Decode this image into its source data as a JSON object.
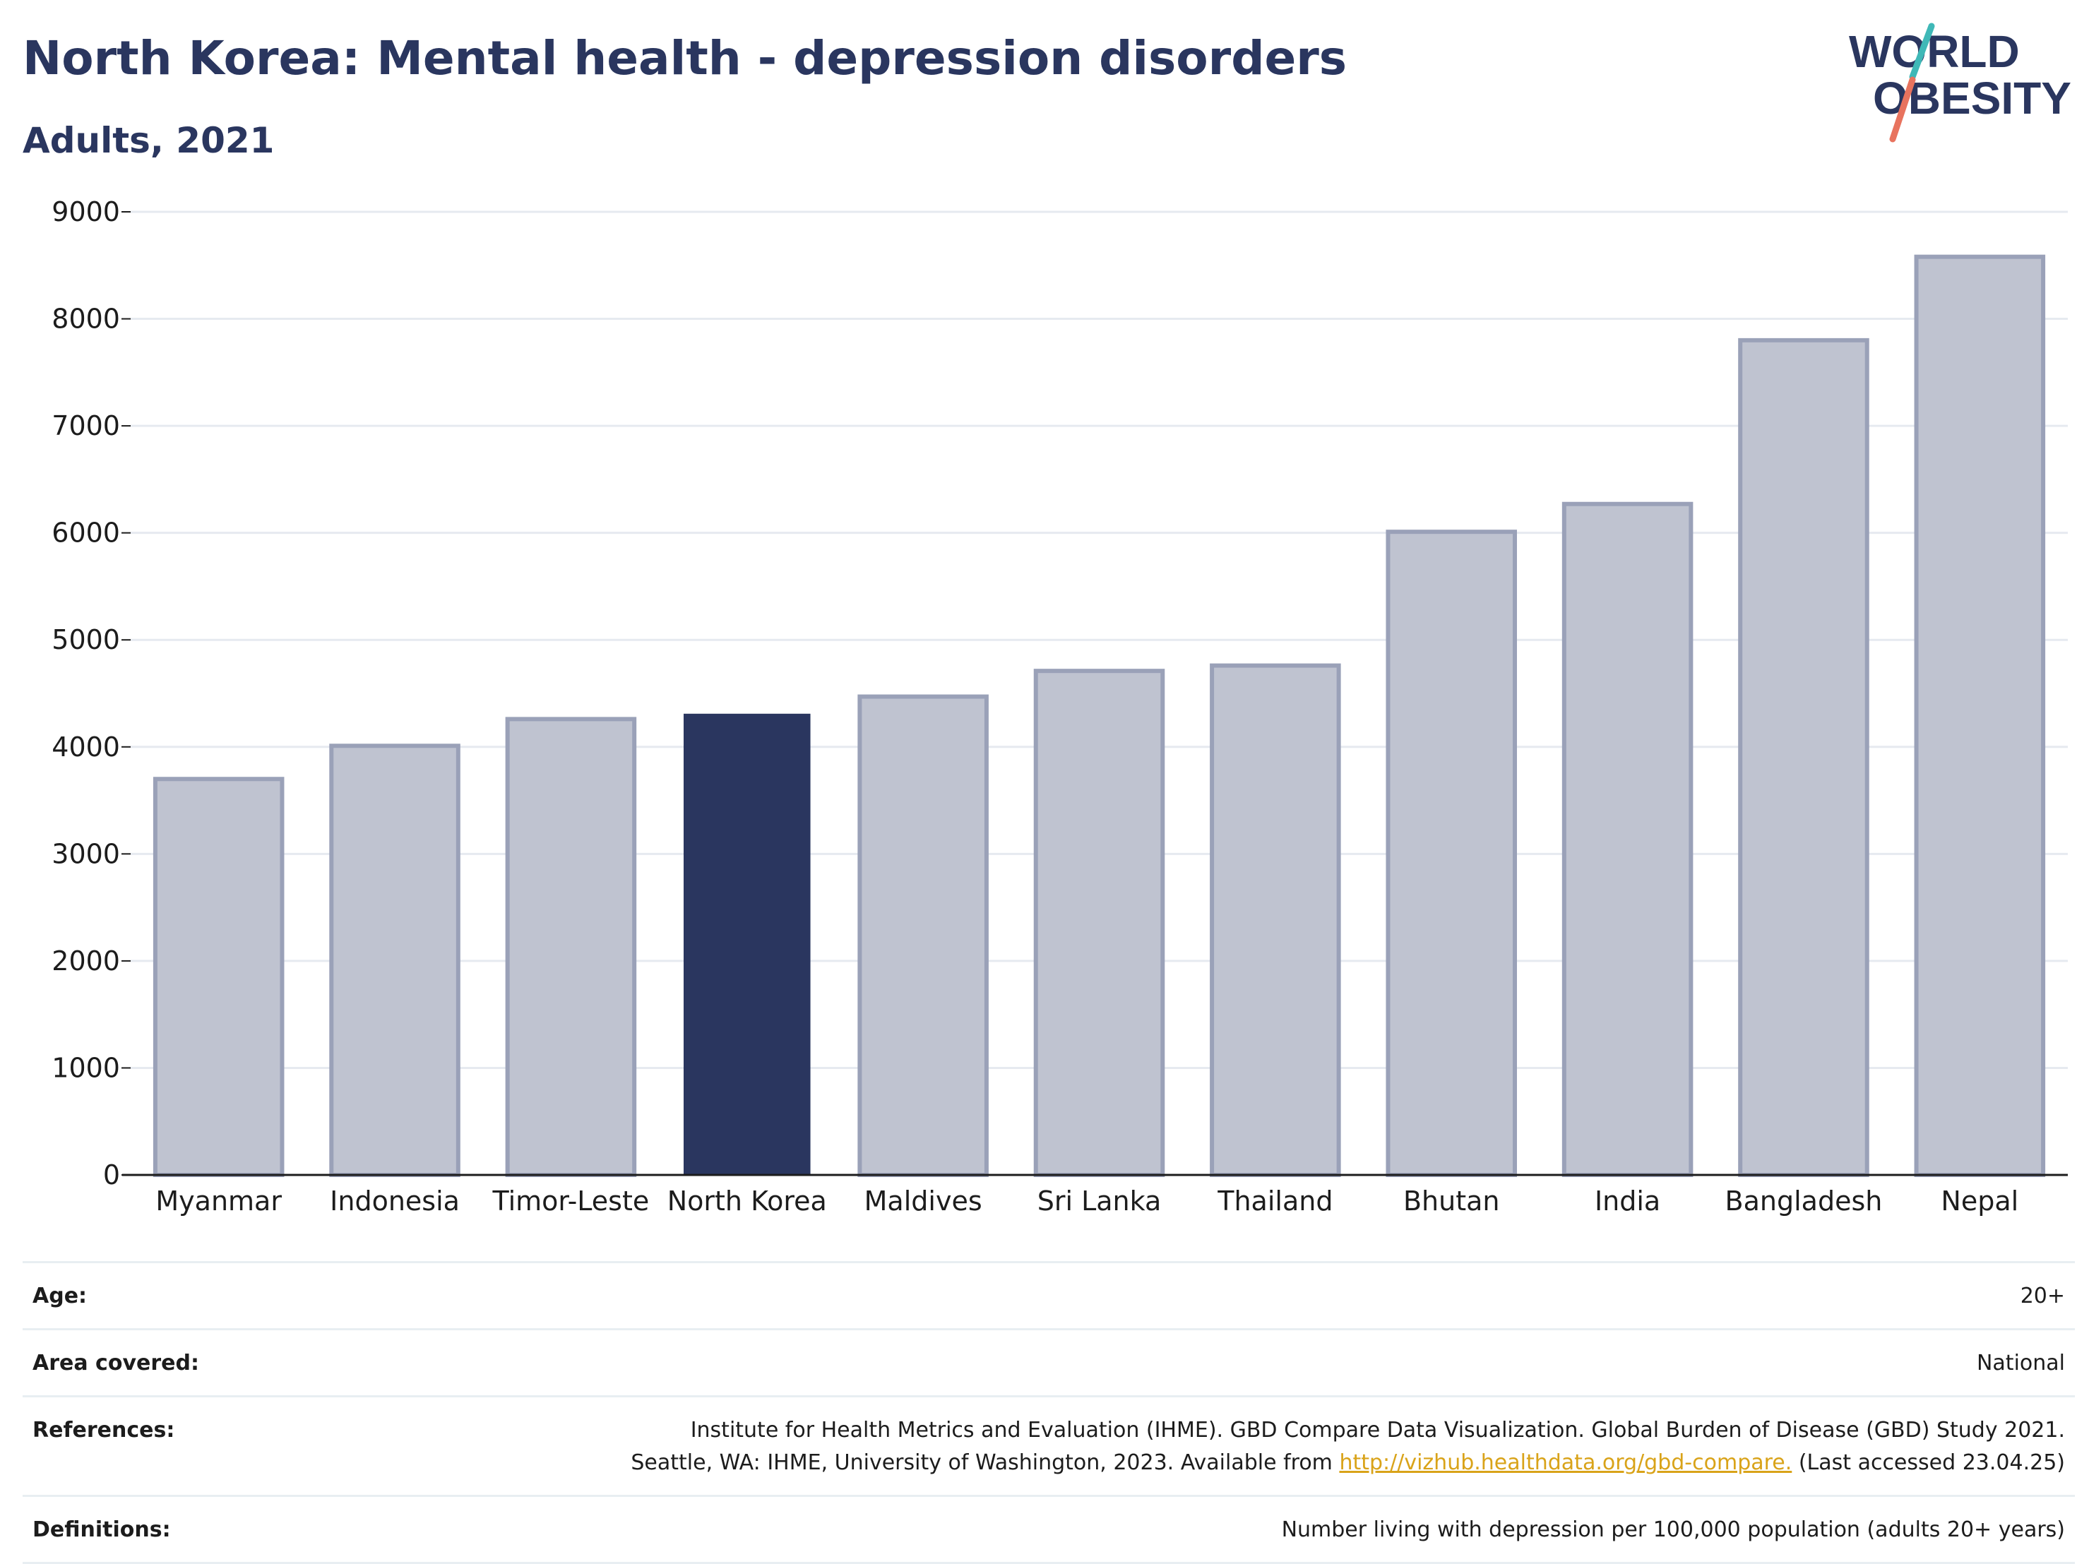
{
  "header": {
    "title": "North Korea: Mental health - depression disorders",
    "subtitle": "Adults, 2021"
  },
  "logo": {
    "line1": "WORLD",
    "line2": "OBESITY",
    "accent_teal": "#3fb8b7",
    "accent_coral": "#e8735e"
  },
  "colors": {
    "highlight": "#2a365f",
    "bar_fill": "#bfc3d0",
    "bar_stroke": "#9aa1b8",
    "text": "#2a365f"
  },
  "chart_data": {
    "type": "bar",
    "categories": [
      "Myanmar",
      "Indonesia",
      "Timor-Leste",
      "North Korea",
      "Maldives",
      "Sri Lanka",
      "Thailand",
      "Bhutan",
      "India",
      "Bangladesh",
      "Nepal"
    ],
    "values": [
      3700,
      4010,
      4260,
      4310,
      4470,
      4710,
      4760,
      6010,
      6270,
      7800,
      8580
    ],
    "highlight": "North Korea",
    "title": "North Korea: Mental health - depression disorders",
    "subtitle": "Adults, 2021",
    "xlabel": "",
    "ylabel": "",
    "ylim": [
      0,
      9000
    ],
    "yticks": [
      0,
      1000,
      2000,
      3000,
      4000,
      5000,
      6000,
      7000,
      8000,
      9000
    ],
    "grid": true,
    "legend": "none"
  },
  "meta": {
    "age_label": "Age:",
    "age_value": "20+",
    "area_label": "Area covered:",
    "area_value": "National",
    "references_label": "References:",
    "references_line1": "Institute for Health Metrics and Evaluation (IHME). GBD Compare Data Visualization. Global Burden of Disease (GBD) Study 2021.",
    "references_line2_pre": "Seattle, WA: IHME, University of Washington, 2023. Available from ",
    "references_link": "http://vizhub.healthdata.org/gbd-compare.",
    "references_line2_post": " (Last accessed 23.04.25)",
    "definitions_label": "Definitions:",
    "definitions_value": "Number living with depression per 100,000 population (adults 20+ years)"
  }
}
